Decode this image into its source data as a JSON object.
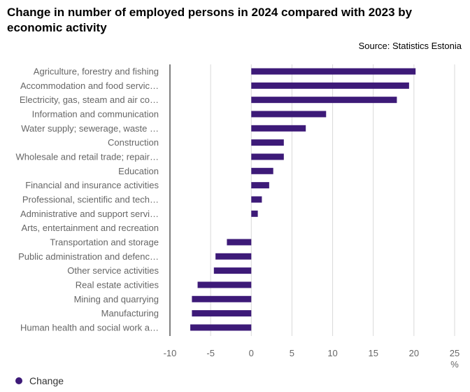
{
  "title": "Change in number of employed persons in 2024 compared with 2023 by economic activity",
  "source": "Source: Statistics Estonia",
  "colors": {
    "bar": "#3d1a78",
    "grid": "#d9d9d9",
    "axis": "#000000"
  },
  "chart_data": {
    "type": "bar",
    "orientation": "horizontal",
    "categories": [
      "Agriculture, forestry and fishing",
      "Accommodation and food servic…",
      "Electricity, gas, steam and air co…",
      "Information and communication",
      "Water supply; sewerage, waste …",
      "Construction",
      "Wholesale and retail trade; repair…",
      "Education",
      "Financial and insurance activities",
      "Professional, scientific and tech…",
      "Administrative and support servi…",
      "Arts, entertainment and recreation",
      "Transportation and storage",
      "Public administration and defenc…",
      "Other service activities",
      "Real estate activities",
      "Mining and quarrying",
      "Manufacturing",
      "Human health and social work a…"
    ],
    "series": [
      {
        "name": "Change",
        "values": [
          20.2,
          19.4,
          17.9,
          9.2,
          6.7,
          4.0,
          4.0,
          2.7,
          2.2,
          1.3,
          0.8,
          0,
          -3.0,
          -4.4,
          -4.6,
          -6.6,
          -7.3,
          -7.3,
          -7.5
        ]
      }
    ],
    "xlim": [
      -10,
      25
    ],
    "xticks": [
      "-10",
      "-5",
      "0",
      "5",
      "10",
      "15",
      "20",
      "25"
    ],
    "xunit": "%",
    "grid": true,
    "legend": "bottom-left"
  }
}
